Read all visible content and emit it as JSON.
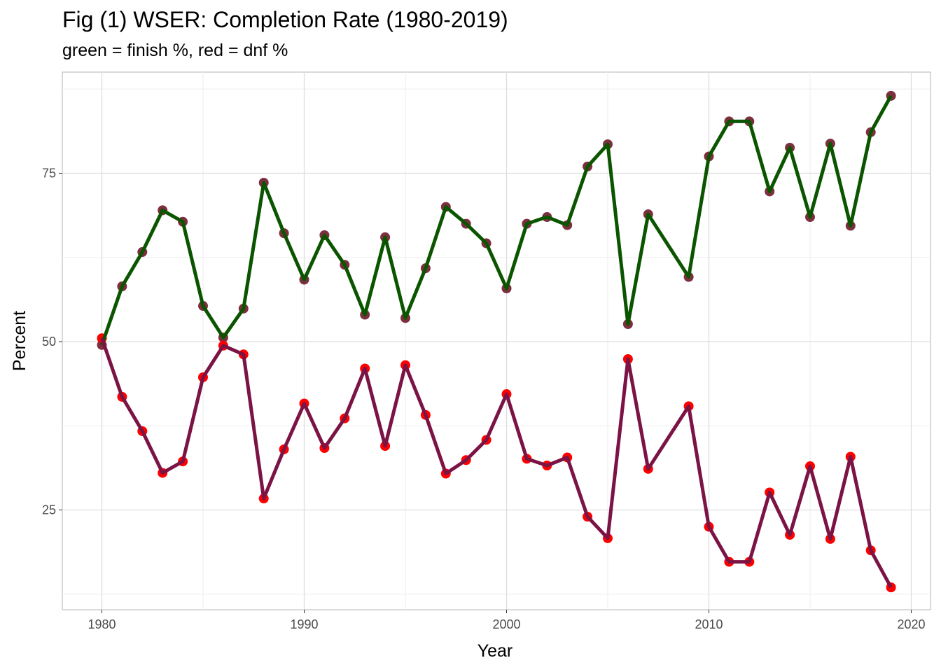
{
  "chart_data": {
    "type": "line",
    "title": "Fig (1) WSER: Completion Rate (1980-2019)",
    "subtitle": "green = finish %, red = dnf %",
    "xlabel": "Year",
    "ylabel": "Percent",
    "xlim": [
      1978,
      2021
    ],
    "ylim": [
      12,
      89
    ],
    "x_ticks": [
      1980,
      1990,
      2000,
      2010,
      2020
    ],
    "y_ticks": [
      25,
      50,
      75
    ],
    "grid": true,
    "x": [
      1980,
      1981,
      1982,
      1983,
      1984,
      1985,
      1986,
      1987,
      1988,
      1989,
      1990,
      1991,
      1992,
      1993,
      1994,
      1995,
      1996,
      1997,
      1998,
      1999,
      2000,
      2001,
      2002,
      2003,
      2004,
      2005,
      2006,
      2007,
      2009,
      2010,
      2011,
      2012,
      2013,
      2014,
      2015,
      2016,
      2017,
      2018,
      2019
    ],
    "series": [
      {
        "name": "finish",
        "line_color": "#0b5500",
        "point_color": "#7d2f3f",
        "values": [
          49.5,
          58.2,
          63.3,
          69.5,
          67.8,
          55.3,
          50.6,
          54.9,
          73.6,
          66.1,
          59.2,
          65.8,
          61.4,
          54.0,
          65.5,
          53.5,
          60.9,
          70.0,
          67.5,
          64.6,
          57.9,
          67.5,
          68.5,
          67.3,
          76.0,
          79.3,
          52.6,
          68.9,
          59.6,
          77.5,
          82.7,
          82.7,
          72.3,
          78.8,
          68.5,
          79.4,
          67.2,
          81.1,
          86.5
        ]
      },
      {
        "name": "dnf",
        "line_color": "#7b1345",
        "point_color": "#ff0000",
        "values": [
          50.5,
          41.8,
          36.7,
          30.5,
          32.2,
          44.7,
          49.4,
          48.1,
          26.7,
          34.0,
          40.8,
          34.2,
          38.6,
          46.0,
          34.5,
          46.5,
          39.1,
          30.4,
          32.4,
          35.4,
          42.2,
          32.6,
          31.6,
          32.8,
          24.0,
          20.8,
          47.4,
          31.1,
          40.4,
          22.5,
          17.3,
          17.3,
          27.6,
          21.3,
          31.5,
          20.7,
          32.9,
          19.0,
          13.5
        ]
      }
    ]
  }
}
